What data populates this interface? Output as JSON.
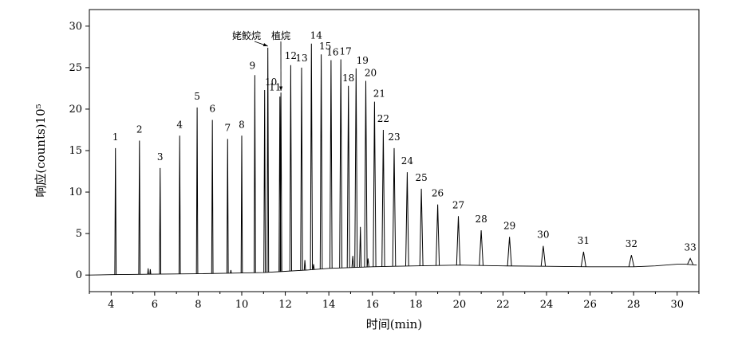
{
  "chart_data": {
    "type": "line",
    "title": "",
    "xlabel": "时间(min)",
    "ylabel": "响应(counts)10⁵",
    "xlim": [
      3,
      31
    ],
    "ylim": [
      -2,
      32
    ],
    "x_ticks": [
      4,
      6,
      8,
      10,
      12,
      14,
      16,
      18,
      20,
      22,
      24,
      26,
      28,
      30
    ],
    "y_ticks": [
      0,
      5,
      10,
      15,
      20,
      25,
      30
    ],
    "grid": false,
    "baseline": [
      [
        3.0,
        0.0
      ],
      [
        4.0,
        0.05
      ],
      [
        6.0,
        0.1
      ],
      [
        8.0,
        0.15
      ],
      [
        10.0,
        0.25
      ],
      [
        11.0,
        0.3
      ],
      [
        12.0,
        0.45
      ],
      [
        13.0,
        0.6
      ],
      [
        14.0,
        0.8
      ],
      [
        15.0,
        0.9
      ],
      [
        16.0,
        1.0
      ],
      [
        17.0,
        1.05
      ],
      [
        18.0,
        1.1
      ],
      [
        19.0,
        1.15
      ],
      [
        20.0,
        1.2
      ],
      [
        21.0,
        1.15
      ],
      [
        22.0,
        1.1
      ],
      [
        24.0,
        1.05
      ],
      [
        26.0,
        1.0
      ],
      [
        28.0,
        1.0
      ],
      [
        29.0,
        1.1
      ],
      [
        30.0,
        1.3
      ],
      [
        30.4,
        1.3
      ],
      [
        30.9,
        1.2
      ]
    ],
    "minor_peaks": [
      {
        "x": 5.7,
        "y": 0.8
      },
      {
        "x": 5.8,
        "y": 0.7
      },
      {
        "x": 9.5,
        "y": 0.6
      },
      {
        "x": 12.9,
        "y": 1.8
      },
      {
        "x": 13.3,
        "y": 1.3
      },
      {
        "x": 15.1,
        "y": 2.3
      },
      {
        "x": 15.45,
        "y": 5.8
      },
      {
        "x": 15.8,
        "y": 2.0
      }
    ],
    "peaks": [
      {
        "label": "1",
        "x": 4.2,
        "y": 15.3
      },
      {
        "label": "2",
        "x": 5.3,
        "y": 16.2
      },
      {
        "label": "3",
        "x": 6.25,
        "y": 12.9
      },
      {
        "label": "4",
        "x": 7.15,
        "y": 16.8
      },
      {
        "label": "5",
        "x": 7.95,
        "y": 20.2
      },
      {
        "label": "6",
        "x": 8.65,
        "y": 18.7
      },
      {
        "label": "7",
        "x": 9.35,
        "y": 16.4
      },
      {
        "label": "8",
        "x": 10.0,
        "y": 16.8
      },
      {
        "label": "9",
        "x": 10.6,
        "y": 24.1
      },
      {
        "label": "10",
        "x": 11.05,
        "y": 22.3
      },
      {
        "label": "姥鲛烷",
        "x": 11.2,
        "y": 27.4
      },
      {
        "label": "11",
        "x": 11.75,
        "y": 21.5
      },
      {
        "label": "植烷",
        "x": 11.8,
        "y": 22.0
      },
      {
        "label": "12",
        "x": 12.25,
        "y": 25.3
      },
      {
        "label": "13",
        "x": 12.75,
        "y": 25.0
      },
      {
        "label": "14",
        "x": 13.2,
        "y": 27.9
      },
      {
        "label": "15",
        "x": 13.65,
        "y": 26.6
      },
      {
        "label": "16",
        "x": 14.1,
        "y": 25.9
      },
      {
        "label": "17",
        "x": 14.55,
        "y": 26.0
      },
      {
        "label": "18",
        "x": 14.9,
        "y": 22.8
      },
      {
        "label": "19",
        "x": 15.25,
        "y": 24.9
      },
      {
        "label": "20",
        "x": 15.7,
        "y": 23.4
      },
      {
        "label": "21",
        "x": 16.1,
        "y": 20.9
      },
      {
        "label": "22",
        "x": 16.5,
        "y": 17.5
      },
      {
        "label": "23",
        "x": 17.0,
        "y": 15.3
      },
      {
        "label": "24",
        "x": 17.6,
        "y": 12.4
      },
      {
        "label": "25",
        "x": 18.25,
        "y": 10.4
      },
      {
        "label": "26",
        "x": 19.0,
        "y": 8.5
      },
      {
        "label": "27",
        "x": 19.95,
        "y": 7.1
      },
      {
        "label": "28",
        "x": 21.0,
        "y": 5.4
      },
      {
        "label": "29",
        "x": 22.3,
        "y": 4.6
      },
      {
        "label": "30",
        "x": 23.85,
        "y": 3.5
      },
      {
        "label": "31",
        "x": 25.7,
        "y": 2.8
      },
      {
        "label": "32",
        "x": 27.9,
        "y": 2.4
      },
      {
        "label": "33",
        "x": 30.6,
        "y": 2.0
      }
    ]
  }
}
